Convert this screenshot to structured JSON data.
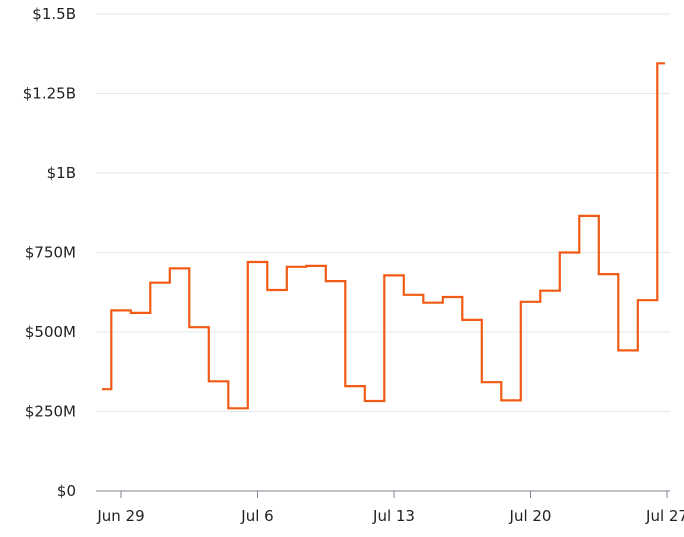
{
  "chart_data": {
    "type": "line",
    "step": true,
    "y_ticks": [
      "$0",
      "$250M",
      "$500M",
      "$750M",
      "$1B",
      "$1.25B",
      "$1.5B"
    ],
    "y_tick_values": [
      0,
      250000000,
      500000000,
      750000000,
      1000000000,
      1250000000,
      1500000000
    ],
    "ylim": [
      0,
      1500000000
    ],
    "x_ticks": [
      "Jun 29",
      "Jul 6",
      "Jul 13",
      "Jul 20",
      "Jul 27"
    ],
    "x_tick_dates": [
      "2024-06-29",
      "2024-07-06",
      "2024-07-13",
      "2024-07-20",
      "2024-07-27"
    ],
    "grid": true,
    "series": [
      {
        "color": "#f05a14",
        "x": [
          "2024-06-28",
          "2024-06-29",
          "2024-06-30",
          "2024-07-01",
          "2024-07-02",
          "2024-07-03",
          "2024-07-04",
          "2024-07-05",
          "2024-07-06",
          "2024-07-07",
          "2024-07-08",
          "2024-07-09",
          "2024-07-10",
          "2024-07-11",
          "2024-07-12",
          "2024-07-13",
          "2024-07-14",
          "2024-07-15",
          "2024-07-16",
          "2024-07-17",
          "2024-07-18",
          "2024-07-19",
          "2024-07-20",
          "2024-07-21",
          "2024-07-22",
          "2024-07-23",
          "2024-07-24",
          "2024-07-25",
          "2024-07-26",
          "2024-07-27"
        ],
        "values": [
          320000000,
          568000000,
          560000000,
          655000000,
          700000000,
          515000000,
          345000000,
          260000000,
          720000000,
          632000000,
          705000000,
          708000000,
          660000000,
          330000000,
          283000000,
          678000000,
          617000000,
          592000000,
          610000000,
          538000000,
          342000000,
          285000000,
          595000000,
          630000000,
          750000000,
          865000000,
          682000000,
          442000000,
          600000000,
          1345000000
        ]
      }
    ]
  }
}
